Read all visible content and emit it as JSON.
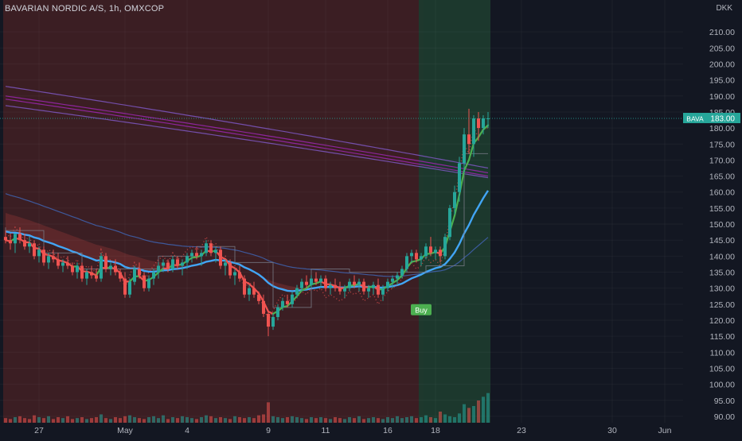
{
  "header": {
    "symbol_title": "BAVARIAN NORDIC A/S, 1h, OMXCOP",
    "currency": "DKK"
  },
  "colors": {
    "background": "#131722",
    "up": "#26a69a",
    "down": "#ef5350",
    "bear_zone": "#3d1f24",
    "bull_zone": "#1c3a2e",
    "ema_fast_up": "#4caf50",
    "ema_fast_down": "#ef5350",
    "ema_mid": "#42a5f5",
    "ema_slow": "#3f5fa8",
    "ema_long_purple": "#9c27b0",
    "ema_long_violet": "#7e57c2",
    "step_line": "#787b86",
    "buy_label": "#4caf50",
    "price_tag": "#26a69a"
  },
  "chart_data": {
    "type": "candlestick",
    "title": "BAVARIAN NORDIC A/S, 1h, OMXCOP",
    "currency": "DKK",
    "ylim": [
      88,
      215
    ],
    "y_ticks": [
      90,
      95,
      100,
      105,
      110,
      115,
      120,
      125,
      130,
      135,
      140,
      145,
      150,
      155,
      160,
      165,
      170,
      175,
      180,
      185,
      190,
      195,
      200,
      205,
      210
    ],
    "y_tick_labels": [
      "90.00",
      "95.00",
      "100.00",
      "105.00",
      "110.00",
      "115.00",
      "120.00",
      "125.00",
      "130.00",
      "135.00",
      "140.00",
      "145.00",
      "150.00",
      "155.00",
      "160.00",
      "165.00",
      "170.00",
      "175.00",
      "180.00",
      "185.00",
      "190.00",
      "195.00",
      "200.00",
      "205.00",
      "210.00"
    ],
    "x_tick_labels": [
      "27",
      "May",
      "4",
      "9",
      "11",
      "16",
      "18",
      "23",
      "30",
      "Jun"
    ],
    "x_tick_index": [
      7,
      25,
      38,
      55,
      67,
      80,
      90,
      108,
      127,
      138
    ],
    "n_bars": 102,
    "zones": [
      {
        "type": "bear",
        "from_index": 0,
        "to_index": 87
      },
      {
        "type": "bull",
        "from_index": 87,
        "to_index": 101
      }
    ],
    "last_price": {
      "symbol": "BAVA",
      "value": "183.00",
      "numeric": 183.0
    },
    "signals": [
      {
        "label": "Buy",
        "index": 87,
        "price": 126
      }
    ],
    "volume_axis_max": 120,
    "candles": [
      [
        146,
        148,
        144,
        145
      ],
      [
        145,
        147,
        142,
        144
      ],
      [
        144,
        146,
        141,
        147
      ],
      [
        147,
        149,
        144,
        145
      ],
      [
        145,
        147,
        142,
        143
      ],
      [
        143,
        146,
        141,
        144
      ],
      [
        144,
        145,
        139,
        140
      ],
      [
        140,
        143,
        138,
        142
      ],
      [
        142,
        143,
        137,
        138
      ],
      [
        138,
        141,
        136,
        140
      ],
      [
        140,
        142,
        138,
        139
      ],
      [
        139,
        141,
        136,
        137
      ],
      [
        137,
        139,
        135,
        138
      ],
      [
        138,
        140,
        136,
        137
      ],
      [
        137,
        138,
        134,
        135
      ],
      [
        135,
        138,
        133,
        137
      ],
      [
        137,
        138,
        132,
        133
      ],
      [
        133,
        136,
        131,
        135
      ],
      [
        135,
        137,
        133,
        134
      ],
      [
        134,
        136,
        132,
        133
      ],
      [
        133,
        141,
        132,
        140
      ],
      [
        140,
        141,
        135,
        136
      ],
      [
        136,
        138,
        134,
        137
      ],
      [
        137,
        139,
        134,
        135
      ],
      [
        135,
        136,
        132,
        133
      ],
      [
        133,
        135,
        127,
        128
      ],
      [
        128,
        133,
        127,
        132
      ],
      [
        132,
        137,
        131,
        136
      ],
      [
        136,
        138,
        133,
        134
      ],
      [
        134,
        135,
        129,
        130
      ],
      [
        130,
        134,
        129,
        133
      ],
      [
        133,
        136,
        131,
        135
      ],
      [
        135,
        138,
        133,
        137
      ],
      [
        137,
        139,
        135,
        138
      ],
      [
        138,
        139,
        135,
        136
      ],
      [
        136,
        140,
        135,
        139
      ],
      [
        139,
        140,
        136,
        137
      ],
      [
        137,
        139,
        134,
        138
      ],
      [
        138,
        141,
        136,
        140
      ],
      [
        140,
        142,
        138,
        141
      ],
      [
        141,
        143,
        139,
        140
      ],
      [
        140,
        142,
        137,
        141
      ],
      [
        141,
        145,
        140,
        144
      ],
      [
        144,
        145,
        140,
        141
      ],
      [
        141,
        143,
        138,
        142
      ],
      [
        142,
        143,
        136,
        137
      ],
      [
        137,
        139,
        134,
        138
      ],
      [
        138,
        139,
        133,
        134
      ],
      [
        134,
        136,
        131,
        135
      ],
      [
        135,
        137,
        132,
        133
      ],
      [
        133,
        134,
        127,
        128
      ],
      [
        128,
        131,
        126,
        130
      ],
      [
        130,
        132,
        127,
        128
      ],
      [
        128,
        129,
        125,
        126
      ],
      [
        126,
        128,
        121,
        122
      ],
      [
        122,
        123,
        115,
        118
      ],
      [
        118,
        122,
        117,
        121
      ],
      [
        121,
        125,
        120,
        124
      ],
      [
        124,
        127,
        123,
        126
      ],
      [
        126,
        128,
        124,
        125
      ],
      [
        125,
        129,
        124,
        128
      ],
      [
        128,
        131,
        127,
        130
      ],
      [
        130,
        133,
        129,
        132
      ],
      [
        132,
        134,
        130,
        131
      ],
      [
        131,
        134,
        130,
        133
      ],
      [
        133,
        135,
        131,
        132
      ],
      [
        132,
        134,
        130,
        133
      ],
      [
        133,
        134,
        129,
        130
      ],
      [
        130,
        132,
        128,
        131
      ],
      [
        131,
        133,
        129,
        130
      ],
      [
        130,
        132,
        128,
        129
      ],
      [
        129,
        131,
        127,
        130
      ],
      [
        130,
        133,
        129,
        132
      ],
      [
        132,
        134,
        130,
        131
      ],
      [
        131,
        133,
        129,
        132
      ],
      [
        132,
        133,
        128,
        129
      ],
      [
        129,
        131,
        127,
        130
      ],
      [
        130,
        132,
        128,
        131
      ],
      [
        131,
        133,
        127,
        128
      ],
      [
        128,
        131,
        126,
        130
      ],
      [
        130,
        133,
        129,
        132
      ],
      [
        132,
        134,
        130,
        133
      ],
      [
        133,
        135,
        131,
        134
      ],
      [
        134,
        137,
        133,
        136
      ],
      [
        136,
        141,
        135,
        140
      ],
      [
        140,
        142,
        138,
        141
      ],
      [
        141,
        142,
        138,
        139
      ],
      [
        139,
        141,
        137,
        140
      ],
      [
        140,
        144,
        139,
        143
      ],
      [
        143,
        146,
        140,
        141
      ],
      [
        141,
        143,
        139,
        142
      ],
      [
        142,
        143,
        138,
        140
      ],
      [
        140,
        147,
        139,
        146
      ],
      [
        146,
        156,
        145,
        155
      ],
      [
        155,
        162,
        153,
        160
      ],
      [
        160,
        171,
        157,
        169
      ],
      [
        169,
        180,
        166,
        178
      ],
      [
        178,
        186,
        172,
        175
      ],
      [
        175,
        184,
        171,
        183
      ],
      [
        183,
        185,
        176,
        180
      ],
      [
        180,
        184,
        178,
        183
      ],
      [
        183,
        185,
        180,
        183
      ]
    ],
    "volumes": [
      5,
      4,
      6,
      7,
      5,
      4,
      8,
      6,
      5,
      7,
      4,
      6,
      5,
      7,
      4,
      5,
      6,
      4,
      5,
      6,
      9,
      5,
      4,
      6,
      5,
      7,
      8,
      6,
      5,
      4,
      6,
      7,
      5,
      8,
      4,
      6,
      5,
      7,
      6,
      5,
      4,
      6,
      8,
      7,
      5,
      6,
      5,
      4,
      7,
      6,
      5,
      6,
      5,
      8,
      9,
      22,
      7,
      6,
      5,
      6,
      7,
      6,
      5,
      4,
      6,
      5,
      6,
      5,
      4,
      6,
      5,
      4,
      6,
      5,
      7,
      4,
      5,
      6,
      5,
      4,
      6,
      5,
      7,
      5,
      6,
      7,
      5,
      6,
      8,
      6,
      5,
      12,
      9,
      7,
      6,
      10,
      20,
      16,
      18,
      24,
      28,
      32
    ],
    "volume_colors": [
      "d",
      "d",
      "u",
      "d",
      "d",
      "d",
      "d",
      "u",
      "d",
      "u",
      "d",
      "d",
      "u",
      "d",
      "d",
      "u",
      "d",
      "u",
      "d",
      "d",
      "u",
      "d",
      "u",
      "d",
      "d",
      "d",
      "u",
      "u",
      "d",
      "d",
      "u",
      "u",
      "u",
      "u",
      "d",
      "u",
      "d",
      "u",
      "u",
      "u",
      "d",
      "u",
      "u",
      "d",
      "u",
      "d",
      "u",
      "d",
      "u",
      "d",
      "d",
      "u",
      "d",
      "d",
      "d",
      "d",
      "u",
      "u",
      "u",
      "d",
      "u",
      "u",
      "u",
      "d",
      "u",
      "d",
      "u",
      "d",
      "u",
      "d",
      "d",
      "u",
      "u",
      "d",
      "u",
      "d",
      "u",
      "u",
      "d",
      "u",
      "u",
      "u",
      "u",
      "u",
      "u",
      "u",
      "d",
      "u",
      "u",
      "d",
      "u",
      "d",
      "u",
      "u",
      "u",
      "u",
      "u",
      "d",
      "u",
      "d",
      "u",
      "u"
    ]
  }
}
